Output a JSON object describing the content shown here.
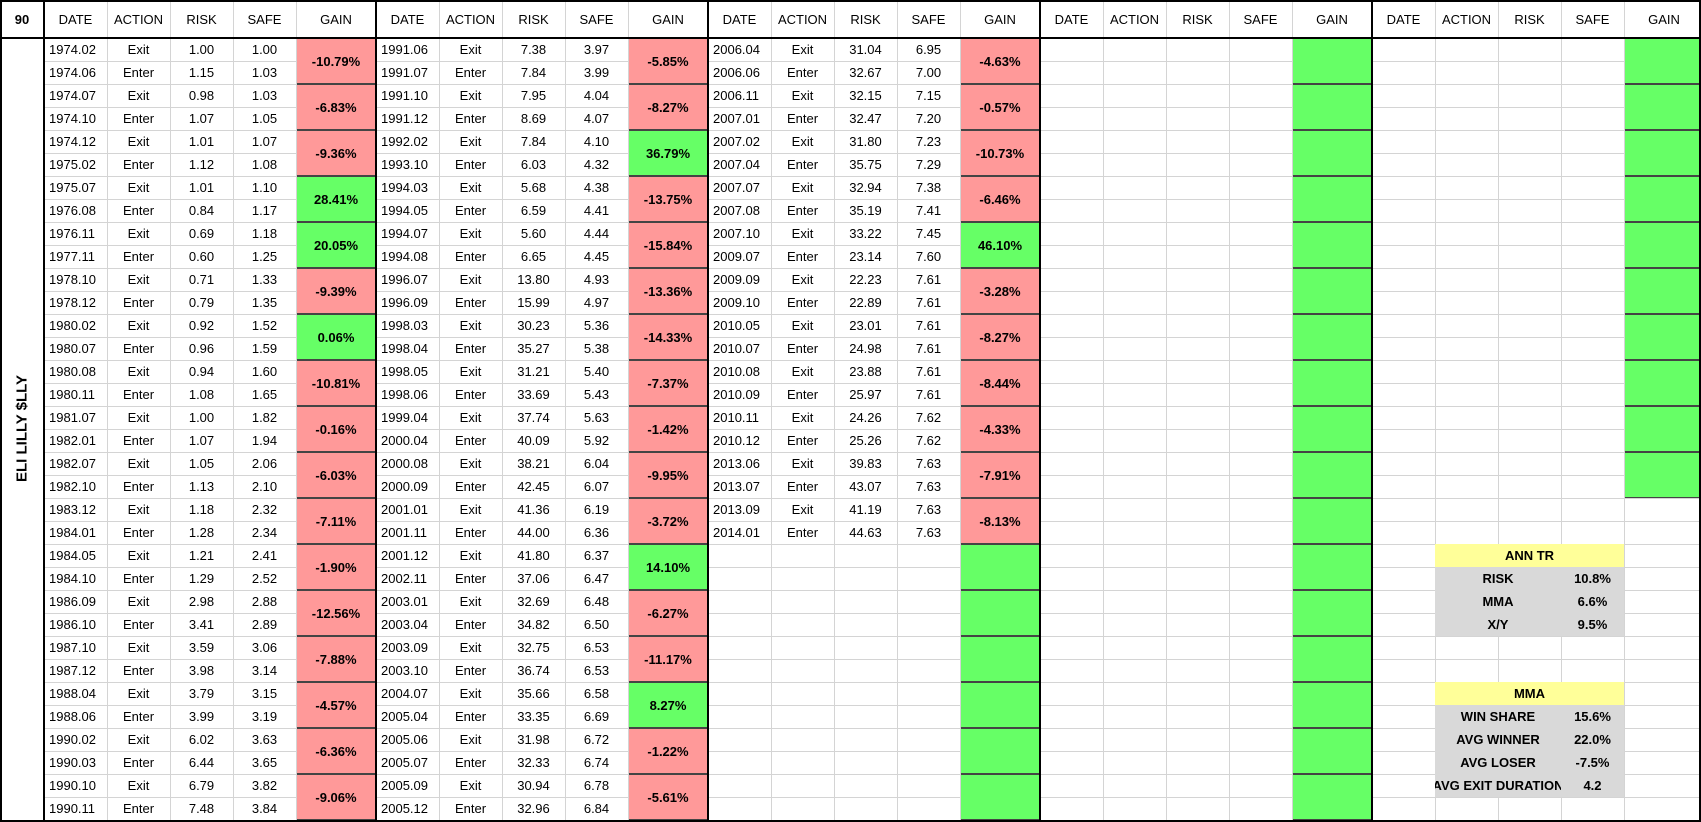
{
  "sheet": {
    "corner": "90",
    "ticker_label": "ELI LILLY $LLY",
    "headers": [
      "DATE",
      "ACTION",
      "RISK",
      "SAFE",
      "GAIN"
    ],
    "colors": {
      "loss": "#ff9999",
      "win": "#66ff66",
      "stat_header": "#ffff99",
      "stat_body": "#d9d9d9"
    },
    "blocks": [
      {
        "rows": [
          [
            "1974.02",
            "Exit",
            "1.00",
            "1.00"
          ],
          [
            "1974.06",
            "Enter",
            "1.15",
            "1.03"
          ],
          [
            "1974.07",
            "Exit",
            "0.98",
            "1.03"
          ],
          [
            "1974.10",
            "Enter",
            "1.07",
            "1.05"
          ],
          [
            "1974.12",
            "Exit",
            "1.01",
            "1.07"
          ],
          [
            "1975.02",
            "Enter",
            "1.12",
            "1.08"
          ],
          [
            "1975.07",
            "Exit",
            "1.01",
            "1.10"
          ],
          [
            "1976.08",
            "Enter",
            "0.84",
            "1.17"
          ],
          [
            "1976.11",
            "Exit",
            "0.69",
            "1.18"
          ],
          [
            "1977.11",
            "Enter",
            "0.60",
            "1.25"
          ],
          [
            "1978.10",
            "Exit",
            "0.71",
            "1.33"
          ],
          [
            "1978.12",
            "Enter",
            "0.79",
            "1.35"
          ],
          [
            "1980.02",
            "Exit",
            "0.92",
            "1.52"
          ],
          [
            "1980.07",
            "Enter",
            "0.96",
            "1.59"
          ],
          [
            "1980.08",
            "Exit",
            "0.94",
            "1.60"
          ],
          [
            "1980.11",
            "Enter",
            "1.08",
            "1.65"
          ],
          [
            "1981.07",
            "Exit",
            "1.00",
            "1.82"
          ],
          [
            "1982.01",
            "Enter",
            "1.07",
            "1.94"
          ],
          [
            "1982.07",
            "Exit",
            "1.05",
            "2.06"
          ],
          [
            "1982.10",
            "Enter",
            "1.13",
            "2.10"
          ],
          [
            "1983.12",
            "Exit",
            "1.18",
            "2.32"
          ],
          [
            "1984.01",
            "Enter",
            "1.28",
            "2.34"
          ],
          [
            "1984.05",
            "Exit",
            "1.21",
            "2.41"
          ],
          [
            "1984.10",
            "Enter",
            "1.29",
            "2.52"
          ],
          [
            "1986.09",
            "Exit",
            "2.98",
            "2.88"
          ],
          [
            "1986.10",
            "Enter",
            "3.41",
            "2.89"
          ],
          [
            "1987.10",
            "Exit",
            "3.59",
            "3.06"
          ],
          [
            "1987.12",
            "Enter",
            "3.98",
            "3.14"
          ],
          [
            "1988.04",
            "Exit",
            "3.79",
            "3.15"
          ],
          [
            "1988.06",
            "Enter",
            "3.99",
            "3.19"
          ],
          [
            "1990.02",
            "Exit",
            "6.02",
            "3.63"
          ],
          [
            "1990.03",
            "Enter",
            "6.44",
            "3.65"
          ],
          [
            "1990.10",
            "Exit",
            "6.79",
            "3.82"
          ],
          [
            "1990.11",
            "Enter",
            "7.48",
            "3.84"
          ]
        ],
        "gains": [
          {
            "text": "-10.79%",
            "status": "loss"
          },
          {
            "text": "-6.83%",
            "status": "loss"
          },
          {
            "text": "-9.36%",
            "status": "loss"
          },
          {
            "text": "28.41%",
            "status": "win"
          },
          {
            "text": "20.05%",
            "status": "win"
          },
          {
            "text": "-9.39%",
            "status": "loss"
          },
          {
            "text": "0.06%",
            "status": "win"
          },
          {
            "text": "-10.81%",
            "status": "loss"
          },
          {
            "text": "-0.16%",
            "status": "loss"
          },
          {
            "text": "-6.03%",
            "status": "loss"
          },
          {
            "text": "-7.11%",
            "status": "loss"
          },
          {
            "text": "-1.90%",
            "status": "loss"
          },
          {
            "text": "-12.56%",
            "status": "loss"
          },
          {
            "text": "-7.88%",
            "status": "loss"
          },
          {
            "text": "-4.57%",
            "status": "loss"
          },
          {
            "text": "-6.36%",
            "status": "loss"
          },
          {
            "text": "-9.06%",
            "status": "loss"
          }
        ]
      },
      {
        "rows": [
          [
            "1991.06",
            "Exit",
            "7.38",
            "3.97"
          ],
          [
            "1991.07",
            "Enter",
            "7.84",
            "3.99"
          ],
          [
            "1991.10",
            "Exit",
            "7.95",
            "4.04"
          ],
          [
            "1991.12",
            "Enter",
            "8.69",
            "4.07"
          ],
          [
            "1992.02",
            "Exit",
            "7.84",
            "4.10"
          ],
          [
            "1993.10",
            "Enter",
            "6.03",
            "4.32"
          ],
          [
            "1994.03",
            "Exit",
            "5.68",
            "4.38"
          ],
          [
            "1994.05",
            "Enter",
            "6.59",
            "4.41"
          ],
          [
            "1994.07",
            "Exit",
            "5.60",
            "4.44"
          ],
          [
            "1994.08",
            "Enter",
            "6.65",
            "4.45"
          ],
          [
            "1996.07",
            "Exit",
            "13.80",
            "4.93"
          ],
          [
            "1996.09",
            "Enter",
            "15.99",
            "4.97"
          ],
          [
            "1998.03",
            "Exit",
            "30.23",
            "5.36"
          ],
          [
            "1998.04",
            "Enter",
            "35.27",
            "5.38"
          ],
          [
            "1998.05",
            "Exit",
            "31.21",
            "5.40"
          ],
          [
            "1998.06",
            "Enter",
            "33.69",
            "5.43"
          ],
          [
            "1999.04",
            "Exit",
            "37.74",
            "5.63"
          ],
          [
            "2000.04",
            "Enter",
            "40.09",
            "5.92"
          ],
          [
            "2000.08",
            "Exit",
            "38.21",
            "6.04"
          ],
          [
            "2000.09",
            "Enter",
            "42.45",
            "6.07"
          ],
          [
            "2001.01",
            "Exit",
            "41.36",
            "6.19"
          ],
          [
            "2001.11",
            "Enter",
            "44.00",
            "6.36"
          ],
          [
            "2001.12",
            "Exit",
            "41.80",
            "6.37"
          ],
          [
            "2002.11",
            "Enter",
            "37.06",
            "6.47"
          ],
          [
            "2003.01",
            "Exit",
            "32.69",
            "6.48"
          ],
          [
            "2003.04",
            "Enter",
            "34.82",
            "6.50"
          ],
          [
            "2003.09",
            "Exit",
            "32.75",
            "6.53"
          ],
          [
            "2003.10",
            "Enter",
            "36.74",
            "6.53"
          ],
          [
            "2004.07",
            "Exit",
            "35.66",
            "6.58"
          ],
          [
            "2005.04",
            "Enter",
            "33.35",
            "6.69"
          ],
          [
            "2005.06",
            "Exit",
            "31.98",
            "6.72"
          ],
          [
            "2005.07",
            "Enter",
            "32.33",
            "6.74"
          ],
          [
            "2005.09",
            "Exit",
            "30.94",
            "6.78"
          ],
          [
            "2005.12",
            "Enter",
            "32.96",
            "6.84"
          ]
        ],
        "gains": [
          {
            "text": "-5.85%",
            "status": "loss"
          },
          {
            "text": "-8.27%",
            "status": "loss"
          },
          {
            "text": "36.79%",
            "status": "win"
          },
          {
            "text": "-13.75%",
            "status": "loss"
          },
          {
            "text": "-15.84%",
            "status": "loss"
          },
          {
            "text": "-13.36%",
            "status": "loss"
          },
          {
            "text": "-14.33%",
            "status": "loss"
          },
          {
            "text": "-7.37%",
            "status": "loss"
          },
          {
            "text": "-1.42%",
            "status": "loss"
          },
          {
            "text": "-9.95%",
            "status": "loss"
          },
          {
            "text": "-3.72%",
            "status": "loss"
          },
          {
            "text": "14.10%",
            "status": "win"
          },
          {
            "text": "-6.27%",
            "status": "loss"
          },
          {
            "text": "-11.17%",
            "status": "loss"
          },
          {
            "text": "8.27%",
            "status": "win"
          },
          {
            "text": "-1.22%",
            "status": "loss"
          },
          {
            "text": "-5.61%",
            "status": "loss"
          }
        ]
      },
      {
        "rows": [
          [
            "2006.04",
            "Exit",
            "31.04",
            "6.95"
          ],
          [
            "2006.06",
            "Enter",
            "32.67",
            "7.00"
          ],
          [
            "2006.11",
            "Exit",
            "32.15",
            "7.15"
          ],
          [
            "2007.01",
            "Enter",
            "32.47",
            "7.20"
          ],
          [
            "2007.02",
            "Exit",
            "31.80",
            "7.23"
          ],
          [
            "2007.04",
            "Enter",
            "35.75",
            "7.29"
          ],
          [
            "2007.07",
            "Exit",
            "32.94",
            "7.38"
          ],
          [
            "2007.08",
            "Enter",
            "35.19",
            "7.41"
          ],
          [
            "2007.10",
            "Exit",
            "33.22",
            "7.45"
          ],
          [
            "2009.07",
            "Enter",
            "23.14",
            "7.60"
          ],
          [
            "2009.09",
            "Exit",
            "22.23",
            "7.61"
          ],
          [
            "2009.10",
            "Enter",
            "22.89",
            "7.61"
          ],
          [
            "2010.05",
            "Exit",
            "23.01",
            "7.61"
          ],
          [
            "2010.07",
            "Enter",
            "24.98",
            "7.61"
          ],
          [
            "2010.08",
            "Exit",
            "23.88",
            "7.61"
          ],
          [
            "2010.09",
            "Enter",
            "25.97",
            "7.61"
          ],
          [
            "2010.11",
            "Exit",
            "24.26",
            "7.62"
          ],
          [
            "2010.12",
            "Enter",
            "25.26",
            "7.62"
          ],
          [
            "2013.06",
            "Exit",
            "39.83",
            "7.63"
          ],
          [
            "2013.07",
            "Enter",
            "43.07",
            "7.63"
          ],
          [
            "2013.09",
            "Exit",
            "41.19",
            "7.63"
          ],
          [
            "2014.01",
            "Enter",
            "44.63",
            "7.63"
          ]
        ],
        "gains": [
          {
            "text": "-4.63%",
            "status": "loss"
          },
          {
            "text": "-0.57%",
            "status": "loss"
          },
          {
            "text": "-10.73%",
            "status": "loss"
          },
          {
            "text": "-6.46%",
            "status": "loss"
          },
          {
            "text": "46.10%",
            "status": "win"
          },
          {
            "text": "-3.28%",
            "status": "loss"
          },
          {
            "text": "-8.27%",
            "status": "loss"
          },
          {
            "text": "-8.44%",
            "status": "loss"
          },
          {
            "text": "-4.33%",
            "status": "loss"
          },
          {
            "text": "-7.91%",
            "status": "loss"
          },
          {
            "text": "-8.13%",
            "status": "loss"
          },
          {
            "text": "",
            "status": "win"
          },
          {
            "text": "",
            "status": "win"
          },
          {
            "text": "",
            "status": "win"
          },
          {
            "text": "",
            "status": "win"
          },
          {
            "text": "",
            "status": "win"
          },
          {
            "text": "",
            "status": "win"
          }
        ]
      },
      {
        "rows": [],
        "gains": [
          {
            "text": "",
            "status": "win"
          },
          {
            "text": "",
            "status": "win"
          },
          {
            "text": "",
            "status": "win"
          },
          {
            "text": "",
            "status": "win"
          },
          {
            "text": "",
            "status": "win"
          },
          {
            "text": "",
            "status": "win"
          },
          {
            "text": "",
            "status": "win"
          },
          {
            "text": "",
            "status": "win"
          },
          {
            "text": "",
            "status": "win"
          },
          {
            "text": "",
            "status": "win"
          },
          {
            "text": "",
            "status": "win"
          },
          {
            "text": "",
            "status": "win"
          },
          {
            "text": "",
            "status": "win"
          },
          {
            "text": "",
            "status": "win"
          },
          {
            "text": "",
            "status": "win"
          },
          {
            "text": "",
            "status": "win"
          },
          {
            "text": "",
            "status": "win"
          }
        ]
      },
      {
        "rows": [],
        "gains": [
          {
            "text": "",
            "status": "win"
          },
          {
            "text": "",
            "status": "win"
          },
          {
            "text": "",
            "status": "win"
          },
          {
            "text": "",
            "status": "win"
          },
          {
            "text": "",
            "status": "win"
          },
          {
            "text": "",
            "status": "win"
          },
          {
            "text": "",
            "status": "win"
          },
          {
            "text": "",
            "status": "win"
          },
          {
            "text": "",
            "status": "win"
          },
          {
            "text": "",
            "status": "win"
          }
        ]
      }
    ],
    "summary": {
      "ann_tr": {
        "title": "ANN TR",
        "rows": [
          {
            "label": "RISK",
            "value": "10.8%"
          },
          {
            "label": "MMA",
            "value": "6.6%"
          },
          {
            "label": "X/Y",
            "value": "9.5%"
          }
        ]
      },
      "mma": {
        "title": "MMA",
        "rows": [
          {
            "label": "WIN SHARE",
            "value": "15.6%"
          },
          {
            "label": "AVG WINNER",
            "value": "22.0%"
          },
          {
            "label": "AVG LOSER",
            "value": "-7.5%"
          },
          {
            "label": "AVG EXIT DURATION",
            "value": "4.2"
          }
        ]
      }
    }
  }
}
